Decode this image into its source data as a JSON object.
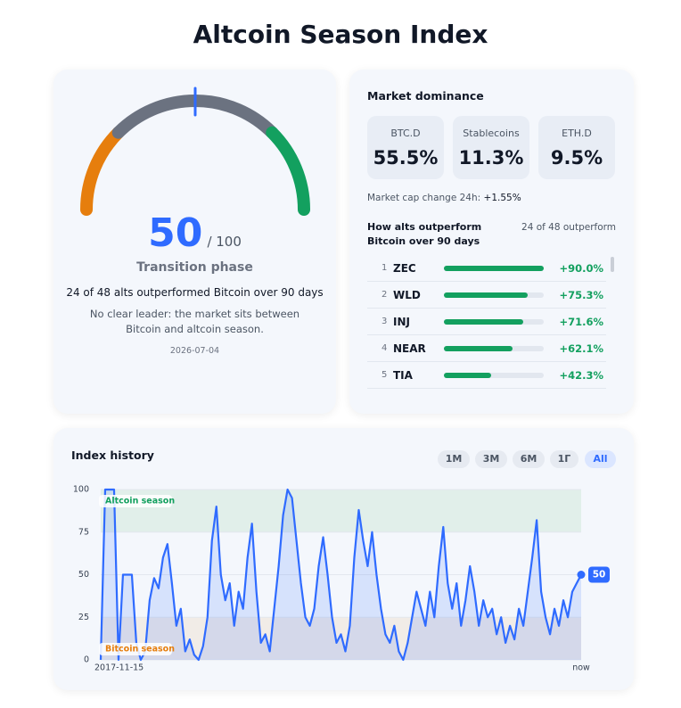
{
  "title": "Altcoin Season Index",
  "gauge": {
    "value": 50,
    "max": 100,
    "max_label": "/ 100",
    "segments": [
      {
        "from": 0,
        "to": 25,
        "color": "#e67e0d"
      },
      {
        "from": 25,
        "to": 75,
        "color": "#6b7280"
      },
      {
        "from": 75,
        "to": 100,
        "color": "#13a05f"
      }
    ],
    "needle_color": "#2f6bff",
    "phase": "Transition phase",
    "summary": "24 of 48 alts outperformed Bitcoin over 90 days",
    "note": "No clear leader: the market sits between Bitcoin and altcoin season.",
    "date": "2026-07-04"
  },
  "dominance": {
    "title": "Market dominance",
    "cards": [
      {
        "label": "BTC.D",
        "value": "55.5%"
      },
      {
        "label": "Stablecoins",
        "value": "11.3%"
      },
      {
        "label": "ETH.D",
        "value": "9.5%"
      }
    ],
    "cap_change_label": "Market cap change 24h:",
    "cap_change": "+1.55%"
  },
  "outperform": {
    "title": "How alts outperform Bitcoin over 90 days",
    "count": "24 of 48 outperform",
    "color": "#13a05f",
    "rows": [
      {
        "rank": 1,
        "name": "ZEC",
        "value": 90.0,
        "value_label": "+90.0%"
      },
      {
        "rank": 2,
        "name": "WLD",
        "value": 75.3,
        "value_label": "+75.3%"
      },
      {
        "rank": 3,
        "name": "INJ",
        "value": 71.6,
        "value_label": "+71.6%"
      },
      {
        "rank": 4,
        "name": "NEAR",
        "value": 62.1,
        "value_label": "+62.1%"
      },
      {
        "rank": 5,
        "name": "TIA",
        "value": 42.3,
        "value_label": "+42.3%"
      }
    ]
  },
  "chart_data": {
    "type": "line",
    "title": "Index history",
    "periods": [
      "1M",
      "3M",
      "6M",
      "1Г",
      "All"
    ],
    "active_period": 4,
    "color": "#2f6bff",
    "ylim": [
      0,
      100
    ],
    "yticks": [
      0,
      25,
      50,
      75,
      100
    ],
    "grid": true,
    "bands": [
      {
        "label": "Altcoin season",
        "from": 75,
        "to": 100,
        "color": "#e1efea",
        "text_color": "#13a05f"
      },
      {
        "label": "Bitcoin season",
        "from": 0,
        "to": 25,
        "color": "#f1ece7",
        "text_color": "#e67e0d"
      }
    ],
    "categories": [
      "2017-11-15",
      null,
      null,
      null,
      null,
      null,
      null,
      null,
      null,
      null,
      null,
      null,
      null,
      null,
      null,
      null,
      null,
      null,
      null,
      null,
      null,
      null,
      null,
      null,
      null,
      null,
      null,
      null,
      null,
      null,
      null,
      null,
      null,
      null,
      null,
      null,
      null,
      null,
      null,
      null,
      null,
      null,
      null,
      null,
      null,
      null,
      null,
      null,
      null,
      null,
      null,
      null,
      null,
      null,
      null,
      null,
      null,
      null,
      null,
      null,
      null,
      null,
      null,
      null,
      null,
      null,
      null,
      null,
      null,
      null,
      null,
      null,
      null,
      null,
      null,
      null,
      null,
      null,
      null,
      null,
      null,
      null,
      null,
      null,
      null,
      null,
      null,
      null,
      null,
      null,
      null,
      null,
      null,
      null,
      null,
      null,
      null,
      null,
      null,
      null,
      null,
      null,
      null,
      null,
      null,
      null,
      null,
      null,
      "now"
    ],
    "values": [
      0,
      100,
      100,
      100,
      0,
      50,
      50,
      50,
      10,
      0,
      5,
      35,
      48,
      42,
      60,
      68,
      45,
      20,
      30,
      5,
      12,
      3,
      0,
      8,
      25,
      70,
      90,
      50,
      35,
      45,
      20,
      40,
      30,
      60,
      80,
      40,
      10,
      15,
      5,
      30,
      55,
      85,
      100,
      95,
      70,
      45,
      25,
      20,
      30,
      55,
      72,
      50,
      25,
      10,
      15,
      5,
      20,
      60,
      88,
      70,
      55,
      75,
      50,
      30,
      15,
      10,
      20,
      5,
      0,
      10,
      25,
      40,
      30,
      20,
      40,
      25,
      55,
      78,
      45,
      30,
      45,
      20,
      35,
      55,
      40,
      20,
      35,
      25,
      30,
      15,
      25,
      10,
      20,
      12,
      30,
      20,
      40,
      60,
      82,
      40,
      25,
      15,
      30,
      20,
      35,
      25,
      40,
      45,
      50
    ]
  }
}
